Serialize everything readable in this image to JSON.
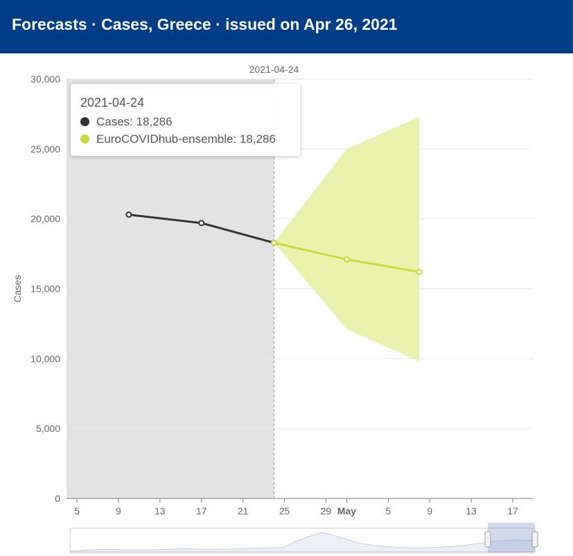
{
  "header": {
    "title": "Forecasts · Cases, Greece  · issued on Apr 26, 2021"
  },
  "chart_data": {
    "type": "line",
    "title": "",
    "xlabel": "",
    "ylabel": "Cases",
    "x_range": [
      "2021-04-04",
      "2021-05-19"
    ],
    "ylim": [
      0,
      30000
    ],
    "y_ticks": [
      0,
      5000,
      10000,
      15000,
      20000,
      25000,
      30000
    ],
    "y_tick_labels": [
      "0",
      "5,000",
      "10,000",
      "15,000",
      "20,000",
      "25,000",
      "30,000"
    ],
    "x_ticks": [
      {
        "date": "2021-04-05",
        "label": "5",
        "bold": false
      },
      {
        "date": "2021-04-09",
        "label": "9",
        "bold": false
      },
      {
        "date": "2021-04-13",
        "label": "13",
        "bold": false
      },
      {
        "date": "2021-04-17",
        "label": "17",
        "bold": false
      },
      {
        "date": "2021-04-21",
        "label": "21",
        "bold": false
      },
      {
        "date": "2021-04-25",
        "label": "25",
        "bold": false
      },
      {
        "date": "2021-04-29",
        "label": "29",
        "bold": false
      },
      {
        "date": "2021-05-01",
        "label": "May",
        "bold": true
      },
      {
        "date": "2021-05-05",
        "label": "5",
        "bold": false
      },
      {
        "date": "2021-05-09",
        "label": "9",
        "bold": false
      },
      {
        "date": "2021-05-13",
        "label": "13",
        "bold": false
      },
      {
        "date": "2021-05-17",
        "label": "17",
        "bold": false
      }
    ],
    "grid": true,
    "shaded_until": "2021-04-24",
    "crosshair": {
      "date": "2021-04-24",
      "label": "2021-04-24"
    },
    "series": [
      {
        "name": "Cases",
        "color": "#333333",
        "points": [
          {
            "x": "2021-04-10",
            "y": 20300
          },
          {
            "x": "2021-04-17",
            "y": 19700
          },
          {
            "x": "2021-04-24",
            "y": 18286
          }
        ]
      },
      {
        "name": "EuroCOVIDhub-ensemble",
        "color": "#c5d93a",
        "band_color": "#eaf3ae",
        "points": [
          {
            "x": "2021-04-24",
            "y": 18286,
            "lower": 18286,
            "upper": 18286
          },
          {
            "x": "2021-05-01",
            "y": 17100,
            "lower": 12100,
            "upper": 25000
          },
          {
            "x": "2021-05-08",
            "y": 16200,
            "lower": 9800,
            "upper": 27300
          }
        ]
      }
    ],
    "tooltip": {
      "title": "2021-04-24",
      "rows": [
        {
          "text": "Cases: 18,286",
          "color": "#333333"
        },
        {
          "text": "EuroCOVIDhub-ensemble: 18,286",
          "color": "#c5d93a"
        }
      ]
    },
    "navigator": {
      "x_range": [
        "2020-03-01",
        "2021-05-19"
      ],
      "selected": [
        "2021-04-04",
        "2021-05-19"
      ],
      "silhouette": [
        0,
        2,
        3,
        2,
        2,
        3,
        4,
        3,
        3,
        4,
        5,
        6,
        20,
        30,
        22,
        12,
        8,
        6,
        5,
        6,
        8,
        12,
        16,
        18,
        17
      ]
    }
  }
}
